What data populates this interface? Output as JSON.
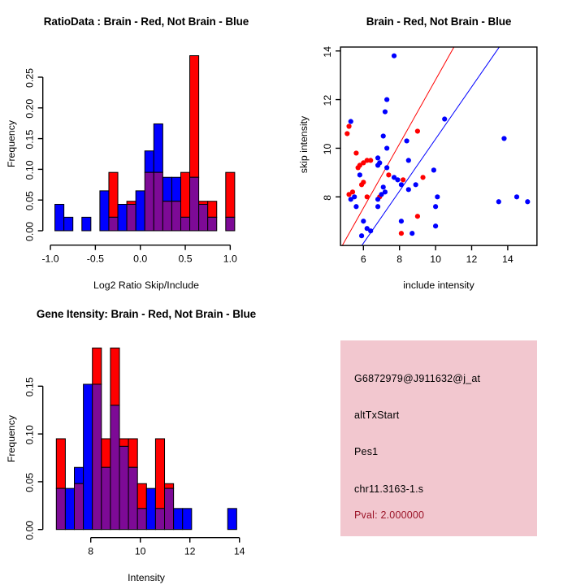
{
  "colors": {
    "red": "#ff0000",
    "blue": "#0000ff",
    "purple": "#7d0a96",
    "bar_stroke": "#000000",
    "axis": "#000000",
    "info_background": "#f2c7cf",
    "pval_text": "#9b1428"
  },
  "chart_data": [
    {
      "id": "ratio_histogram",
      "type": "bar",
      "title": "RatioData : Brain - Red, Not Brain - Blue",
      "xlabel": "Log2 Ratio Skip/Include",
      "ylabel": "Frequency",
      "x_ticks": [
        -1.0,
        -0.5,
        0.0,
        0.5,
        1.0
      ],
      "x_tick_labels": [
        "-1.0",
        "-0.5",
        "0.0",
        "0.5",
        "1.0"
      ],
      "y_ticks": [
        0,
        0.05,
        0.1,
        0.15,
        0.2,
        0.25
      ],
      "y_tick_labels": [
        "0.00",
        "0.05",
        "0.10",
        "0.15",
        "0.20",
        "0.25"
      ],
      "xlim": [
        -1.0,
        1.05
      ],
      "ylim": [
        0,
        0.29
      ],
      "grid": false,
      "bin_width": 0.1,
      "bars_note": "x0=bin left edge (Log2 ratio); h=total height of dominant color; overlap=purple overlap height; top=color above overlap",
      "bars": [
        {
          "x0": -0.95,
          "overlap": 0,
          "top": "blue",
          "h": 0.043
        },
        {
          "x0": -0.85,
          "overlap": 0,
          "top": "blue",
          "h": 0.022
        },
        {
          "x0": -0.65,
          "overlap": 0,
          "top": "blue",
          "h": 0.022
        },
        {
          "x0": -0.45,
          "overlap": 0,
          "top": "blue",
          "h": 0.065
        },
        {
          "x0": -0.35,
          "overlap": 0.022,
          "top": "red",
          "h": 0.095
        },
        {
          "x0": -0.25,
          "overlap": 0,
          "top": "blue",
          "h": 0.043
        },
        {
          "x0": -0.15,
          "overlap": 0.043,
          "top": "red",
          "h": 0.048
        },
        {
          "x0": -0.05,
          "overlap": 0,
          "top": "blue",
          "h": 0.065
        },
        {
          "x0": 0.05,
          "overlap": 0.095,
          "top": "blue",
          "h": 0.13
        },
        {
          "x0": 0.15,
          "overlap": 0.095,
          "top": "blue",
          "h": 0.174
        },
        {
          "x0": 0.25,
          "overlap": 0.048,
          "top": "blue",
          "h": 0.087
        },
        {
          "x0": 0.35,
          "overlap": 0.048,
          "top": "blue",
          "h": 0.087
        },
        {
          "x0": 0.45,
          "overlap": 0.022,
          "top": "red",
          "h": 0.095
        },
        {
          "x0": 0.55,
          "overlap": 0.087,
          "top": "red",
          "h": 0.285
        },
        {
          "x0": 0.65,
          "overlap": 0.043,
          "top": "red",
          "h": 0.048
        },
        {
          "x0": 0.75,
          "overlap": 0.022,
          "top": "red",
          "h": 0.048
        },
        {
          "x0": 0.95,
          "overlap": 0.022,
          "top": "red",
          "h": 0.095
        }
      ]
    },
    {
      "id": "intensity_scatter",
      "type": "scatter",
      "title": "Brain - Red, Not Brain - Blue",
      "xlabel": "include intensity",
      "ylabel": "skip intensity",
      "x_ticks": [
        6,
        8,
        10,
        12,
        14
      ],
      "x_tick_labels": [
        "6",
        "8",
        "10",
        "12",
        "14"
      ],
      "y_ticks": [
        8,
        10,
        12,
        14
      ],
      "y_tick_labels": [
        "8",
        "10",
        "12",
        "14"
      ],
      "xlim": [
        4.73,
        15.62
      ],
      "ylim": [
        6.0,
        14.16
      ],
      "grid": false,
      "series": [
        {
          "name": "brain",
          "color_key": "red",
          "points": [
            [
              5.2,
              10.9
            ],
            [
              5.1,
              10.6
            ],
            [
              9.0,
              10.7
            ],
            [
              5.6,
              9.8
            ],
            [
              6.0,
              9.4
            ],
            [
              6.2,
              9.5
            ],
            [
              6.4,
              9.5
            ],
            [
              5.7,
              9.2
            ],
            [
              5.8,
              9.3
            ],
            [
              7.4,
              8.9
            ],
            [
              8.2,
              8.7
            ],
            [
              9.3,
              8.8
            ],
            [
              6.0,
              8.6
            ],
            [
              5.9,
              8.5
            ],
            [
              5.2,
              8.1
            ],
            [
              5.4,
              8.2
            ],
            [
              6.2,
              8.0
            ],
            [
              6.9,
              8.0
            ],
            [
              9.0,
              7.2
            ],
            [
              8.1,
              6.5
            ]
          ]
        },
        {
          "name": "not_brain",
          "color_key": "blue",
          "points": [
            [
              7.7,
              13.8
            ],
            [
              7.3,
              12.0
            ],
            [
              7.2,
              11.5
            ],
            [
              5.3,
              11.1
            ],
            [
              10.5,
              11.2
            ],
            [
              13.8,
              10.4
            ],
            [
              7.1,
              10.5
            ],
            [
              8.4,
              10.3
            ],
            [
              7.3,
              10.0
            ],
            [
              6.8,
              9.6
            ],
            [
              6.9,
              9.4
            ],
            [
              6.8,
              9.3
            ],
            [
              7.3,
              9.2
            ],
            [
              8.5,
              9.5
            ],
            [
              9.9,
              9.1
            ],
            [
              5.8,
              8.9
            ],
            [
              7.7,
              8.8
            ],
            [
              7.9,
              8.7
            ],
            [
              8.1,
              8.5
            ],
            [
              8.5,
              8.3
            ],
            [
              8.9,
              8.5
            ],
            [
              7.1,
              8.4
            ],
            [
              7.2,
              8.2
            ],
            [
              7.0,
              8.1
            ],
            [
              6.8,
              7.9
            ],
            [
              6.8,
              7.6
            ],
            [
              5.3,
              7.9
            ],
            [
              5.5,
              8.0
            ],
            [
              5.6,
              7.6
            ],
            [
              6.0,
              7.0
            ],
            [
              5.9,
              6.4
            ],
            [
              6.2,
              6.7
            ],
            [
              6.4,
              6.6
            ],
            [
              8.1,
              7.0
            ],
            [
              8.7,
              6.5
            ],
            [
              10.0,
              6.8
            ],
            [
              10.0,
              7.6
            ],
            [
              10.1,
              8.0
            ],
            [
              13.5,
              7.8
            ],
            [
              14.5,
              8.0
            ],
            [
              15.1,
              7.8
            ]
          ]
        }
      ],
      "lines": [
        {
          "color_key": "red",
          "x1": 4.83,
          "y1": 6.0,
          "x2": 11.02,
          "y2": 14.16
        },
        {
          "color_key": "blue",
          "x1": 5.91,
          "y1": 6.0,
          "x2": 13.53,
          "y2": 14.16
        }
      ]
    },
    {
      "id": "gene_intensity_histogram",
      "type": "bar",
      "title": "Gene Itensity: Brain - Red, Not Brain - Blue",
      "xlabel": "Intensity",
      "ylabel": "Frequency",
      "x_ticks": [
        8,
        10,
        12,
        14
      ],
      "x_tick_labels": [
        "8",
        "10",
        "12",
        "14"
      ],
      "y_ticks": [
        0,
        0.05,
        0.1,
        0.15
      ],
      "y_tick_labels": [
        "0.00",
        "0.05",
        "0.10",
        "0.15"
      ],
      "xlim": [
        6.6,
        13.9
      ],
      "ylim": [
        0,
        0.19
      ],
      "grid": false,
      "bin_width": 0.364,
      "bars": [
        {
          "x0": 6.61,
          "overlap": 0.043,
          "top": "red",
          "h": 0.095
        },
        {
          "x0": 6.974,
          "overlap": 0,
          "top": "blue",
          "h": 0.043
        },
        {
          "x0": 7.338,
          "overlap": 0.048,
          "top": "blue",
          "h": 0.065
        },
        {
          "x0": 7.702,
          "overlap": 0,
          "top": "blue",
          "h": 0.152
        },
        {
          "x0": 8.066,
          "overlap": 0.152,
          "top": "red",
          "h": 0.19
        },
        {
          "x0": 8.43,
          "overlap": 0.065,
          "top": "red",
          "h": 0.095
        },
        {
          "x0": 8.794,
          "overlap": 0.13,
          "top": "red",
          "h": 0.19
        },
        {
          "x0": 9.158,
          "overlap": 0.087,
          "top": "red",
          "h": 0.095
        },
        {
          "x0": 9.522,
          "overlap": 0.065,
          "top": "red",
          "h": 0.095
        },
        {
          "x0": 9.886,
          "overlap": 0.022,
          "top": "red",
          "h": 0.048
        },
        {
          "x0": 10.25,
          "overlap": 0,
          "top": "blue",
          "h": 0.043
        },
        {
          "x0": 10.614,
          "overlap": 0.022,
          "top": "red",
          "h": 0.095
        },
        {
          "x0": 10.978,
          "overlap": 0.043,
          "top": "red",
          "h": 0.048
        },
        {
          "x0": 11.342,
          "overlap": 0,
          "top": "blue",
          "h": 0.022
        },
        {
          "x0": 11.706,
          "overlap": 0,
          "top": "blue",
          "h": 0.022
        },
        {
          "x0": 13.526,
          "overlap": 0,
          "top": "blue",
          "h": 0.022
        }
      ]
    },
    {
      "id": "info_panel",
      "type": "text",
      "lines": [
        {
          "text": "G6872979@J911632@j_at",
          "color": "black"
        },
        {
          "text": "altTxStart",
          "color": "black"
        },
        {
          "text": "Pes1",
          "color": "black"
        },
        {
          "text": "chr11.3163-1.s",
          "color": "black"
        },
        {
          "text": "Pval: 2.000000",
          "color": "darkred"
        }
      ]
    }
  ]
}
